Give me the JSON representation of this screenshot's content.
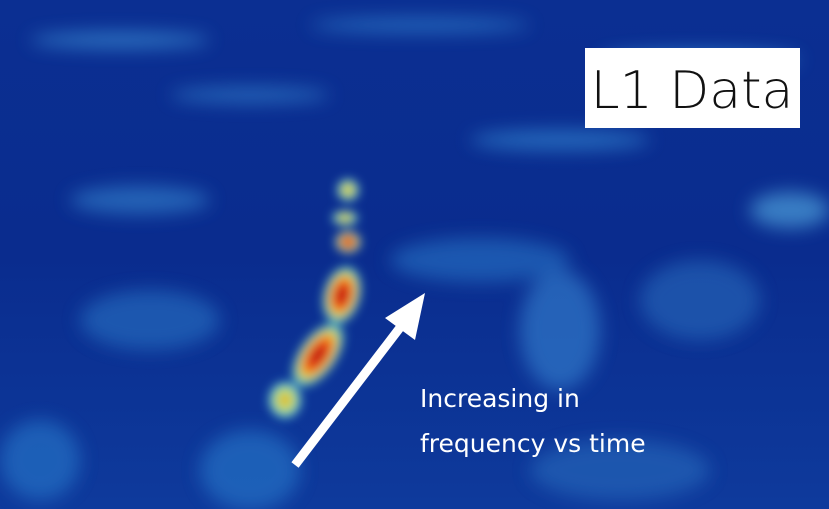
{
  "label": {
    "text": "L1 Data"
  },
  "annotation": {
    "lines": [
      "Increasing in",
      "frequency vs time"
    ]
  }
}
